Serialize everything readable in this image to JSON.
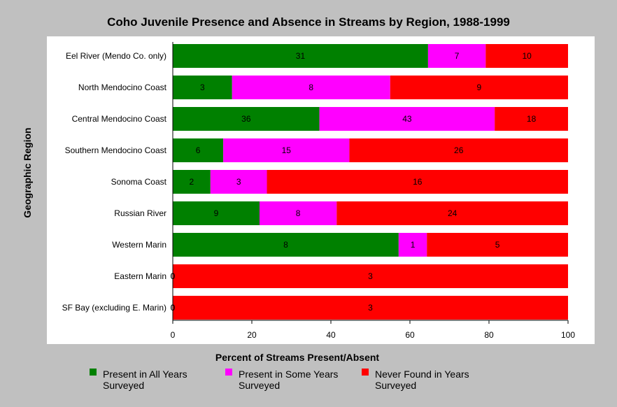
{
  "chart_data": {
    "type": "bar",
    "orientation": "horizontal",
    "stacked": true,
    "percent_stacked": true,
    "title": "Coho Juvenile Presence and Absence in Streams by Region, 1988-1999",
    "xlabel": "Percent of Streams Present/Absent",
    "ylabel": "Geographic Region",
    "xlim": [
      0,
      100
    ],
    "xticks": [
      "0",
      "20",
      "40",
      "60",
      "80",
      "100"
    ],
    "grid": false,
    "legend_position": "bottom",
    "categories": [
      "Eel River (Mendo Co. only)",
      "North Mendocino Coast",
      "Central Mendocino Coast",
      "Southern Mendocino Coast",
      "Sonoma Coast",
      "Russian River",
      "Western Marin",
      "Eastern Marin",
      "SF Bay (excluding E. Marin)"
    ],
    "series": [
      {
        "name": "Present in All Years Surveyed",
        "legend_lines": [
          "Present in All Years",
          "Surveyed"
        ],
        "color": "#008000",
        "values": [
          31,
          3,
          36,
          6,
          2,
          9,
          8,
          0,
          0
        ]
      },
      {
        "name": "Present in Some Years Surveyed",
        "legend_lines": [
          "Present in Some Years",
          "Surveyed"
        ],
        "color": "#ff00ff",
        "values": [
          7,
          8,
          43,
          15,
          3,
          8,
          1,
          0,
          0
        ]
      },
      {
        "name": "Never Found in Years Surveyed",
        "legend_lines": [
          "Never Found in Years",
          "Surveyed"
        ],
        "color": "#ff0000",
        "values": [
          10,
          9,
          18,
          26,
          16,
          24,
          5,
          3,
          3
        ]
      }
    ]
  }
}
